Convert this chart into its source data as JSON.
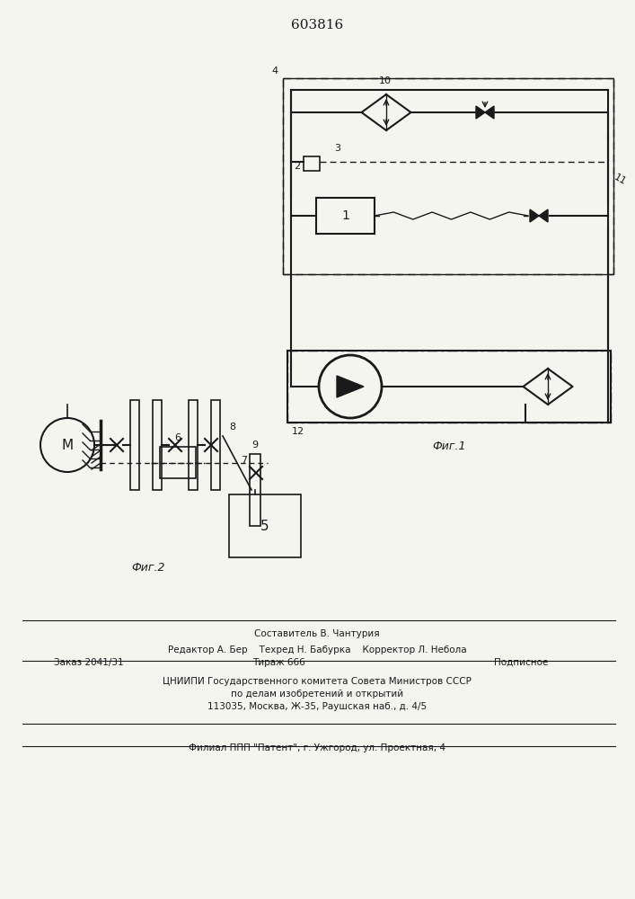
{
  "title": "603816",
  "fig1_label": "Фиг.1",
  "fig2_label": "Фиг.2",
  "bg_color": "#f5f5f0",
  "line_color": "#1a1a1a",
  "footer_lines": [
    "Составитель В. Чантурия",
    "Редактор А. Бер    Техред Н. Бабурка    Корректор Л. Небола",
    "Заказ 2041/31         Тираж 666              Подписное",
    "ЦНИИПИ Государственного комитета Совета Министров СССР",
    "по делам изобретений и открытий",
    "113035, Москва, Ж-35, Раушская наб., д. 4/5",
    "Филиал ППП \"Патент\", г. Ужгород, ул. Проектная, 4"
  ]
}
